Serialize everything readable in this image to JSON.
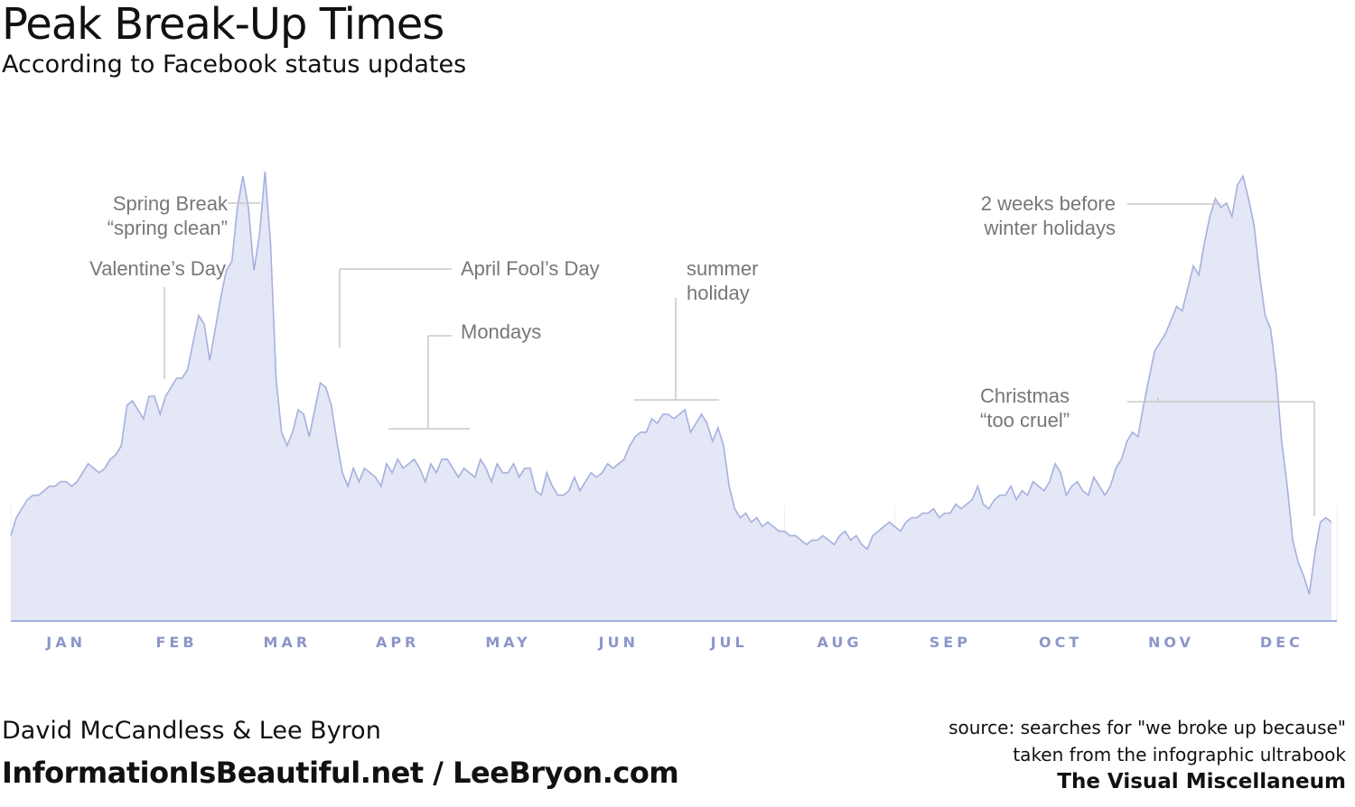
{
  "header": {
    "title": "Peak Break-Up Times",
    "subtitle": "According to Facebook status updates"
  },
  "footer": {
    "credit_names": "David McCandless & Lee Byron",
    "credit_sites": "InformationIsBeautiful.net / LeeBryon.com",
    "source_line": "source: searches for \"we broke up because\"",
    "taken_from": "taken from the infographic ultrabook",
    "book_title": "The Visual Miscellaneum"
  },
  "colors": {
    "area_fill": "#e3e7f6",
    "area_stroke": "#a7b0de",
    "gridline": "#eceef8",
    "annotation": "#777777",
    "month_label": "#8c96c8"
  },
  "chart_data": {
    "type": "area",
    "title": "Peak Break-Up Times",
    "subtitle": "According to Facebook status updates",
    "xlabel": "",
    "ylabel": "",
    "y_axis_shown": false,
    "y_units": "relative (0 = baseline, 100 = highest peak)",
    "ylim": [
      0,
      100
    ],
    "grid": "vertical month bands",
    "months": [
      "JAN",
      "FEB",
      "MAR",
      "APR",
      "MAY",
      "JUN",
      "JUL",
      "AUG",
      "SEP",
      "OCT",
      "NOV",
      "DEC"
    ],
    "x_domain": [
      0,
      12
    ],
    "x_units": "months since Jan 1",
    "points": [
      [
        0.0,
        19
      ],
      [
        0.05,
        23
      ],
      [
        0.1,
        25
      ],
      [
        0.15,
        27
      ],
      [
        0.2,
        28
      ],
      [
        0.25,
        28
      ],
      [
        0.3,
        29
      ],
      [
        0.35,
        30
      ],
      [
        0.4,
        30
      ],
      [
        0.45,
        31
      ],
      [
        0.5,
        31
      ],
      [
        0.55,
        30
      ],
      [
        0.6,
        31
      ],
      [
        0.65,
        33
      ],
      [
        0.7,
        35
      ],
      [
        0.75,
        34
      ],
      [
        0.8,
        33
      ],
      [
        0.85,
        34
      ],
      [
        0.9,
        36
      ],
      [
        0.95,
        37
      ],
      [
        1.0,
        39
      ],
      [
        1.05,
        48
      ],
      [
        1.1,
        49
      ],
      [
        1.15,
        47
      ],
      [
        1.2,
        45
      ],
      [
        1.25,
        50
      ],
      [
        1.3,
        50
      ],
      [
        1.35,
        46
      ],
      [
        1.4,
        50
      ],
      [
        1.45,
        52
      ],
      [
        1.5,
        54
      ],
      [
        1.55,
        54
      ],
      [
        1.6,
        56
      ],
      [
        1.65,
        62
      ],
      [
        1.7,
        68
      ],
      [
        1.75,
        66
      ],
      [
        1.8,
        58
      ],
      [
        1.85,
        65
      ],
      [
        1.9,
        72
      ],
      [
        1.95,
        78
      ],
      [
        2.0,
        80
      ],
      [
        2.05,
        92
      ],
      [
        2.1,
        99
      ],
      [
        2.15,
        92
      ],
      [
        2.2,
        78
      ],
      [
        2.25,
        86
      ],
      [
        2.3,
        100
      ],
      [
        2.35,
        84
      ],
      [
        2.4,
        54
      ],
      [
        2.45,
        42
      ],
      [
        2.5,
        39
      ],
      [
        2.55,
        42
      ],
      [
        2.6,
        47
      ],
      [
        2.65,
        46
      ],
      [
        2.7,
        41
      ],
      [
        2.75,
        47
      ],
      [
        2.8,
        53
      ],
      [
        2.85,
        52
      ],
      [
        2.9,
        48
      ],
      [
        2.95,
        40
      ],
      [
        3.0,
        33
      ],
      [
        3.05,
        30
      ],
      [
        3.1,
        34
      ],
      [
        3.15,
        31
      ],
      [
        3.2,
        34
      ],
      [
        3.25,
        33
      ],
      [
        3.3,
        32
      ],
      [
        3.35,
        30
      ],
      [
        3.4,
        35
      ],
      [
        3.45,
        33
      ],
      [
        3.5,
        36
      ],
      [
        3.55,
        34
      ],
      [
        3.6,
        35
      ],
      [
        3.65,
        36
      ],
      [
        3.7,
        34
      ],
      [
        3.75,
        31
      ],
      [
        3.8,
        35
      ],
      [
        3.85,
        33
      ],
      [
        3.9,
        36
      ],
      [
        3.95,
        36
      ],
      [
        4.0,
        34
      ],
      [
        4.05,
        32
      ],
      [
        4.1,
        34
      ],
      [
        4.15,
        33
      ],
      [
        4.2,
        32
      ],
      [
        4.25,
        36
      ],
      [
        4.3,
        34
      ],
      [
        4.35,
        31
      ],
      [
        4.4,
        35
      ],
      [
        4.45,
        33
      ],
      [
        4.5,
        33
      ],
      [
        4.55,
        35
      ],
      [
        4.6,
        32
      ],
      [
        4.65,
        34
      ],
      [
        4.7,
        34
      ],
      [
        4.75,
        29
      ],
      [
        4.8,
        28
      ],
      [
        4.85,
        33
      ],
      [
        4.9,
        30
      ],
      [
        4.95,
        28
      ],
      [
        5.0,
        28
      ],
      [
        5.05,
        29
      ],
      [
        5.1,
        32
      ],
      [
        5.15,
        29
      ],
      [
        5.2,
        31
      ],
      [
        5.25,
        33
      ],
      [
        5.3,
        32
      ],
      [
        5.35,
        33
      ],
      [
        5.4,
        35
      ],
      [
        5.45,
        34
      ],
      [
        5.5,
        35
      ],
      [
        5.55,
        36
      ],
      [
        5.6,
        39
      ],
      [
        5.65,
        41
      ],
      [
        5.7,
        42
      ],
      [
        5.75,
        42
      ],
      [
        5.8,
        45
      ],
      [
        5.85,
        44
      ],
      [
        5.9,
        46
      ],
      [
        5.95,
        46
      ],
      [
        6.0,
        45
      ],
      [
        6.05,
        46
      ],
      [
        6.1,
        47
      ],
      [
        6.15,
        42
      ],
      [
        6.2,
        44
      ],
      [
        6.25,
        46
      ],
      [
        6.3,
        44
      ],
      [
        6.35,
        40
      ],
      [
        6.4,
        43
      ],
      [
        6.45,
        39
      ],
      [
        6.5,
        30
      ],
      [
        6.55,
        25
      ],
      [
        6.6,
        23
      ],
      [
        6.65,
        24
      ],
      [
        6.7,
        22
      ],
      [
        6.75,
        23
      ],
      [
        6.8,
        21
      ],
      [
        6.85,
        22
      ],
      [
        6.9,
        21
      ],
      [
        6.95,
        20
      ],
      [
        7.0,
        20
      ],
      [
        7.05,
        19
      ],
      [
        7.1,
        19
      ],
      [
        7.15,
        18
      ],
      [
        7.2,
        17
      ],
      [
        7.25,
        18
      ],
      [
        7.3,
        18
      ],
      [
        7.35,
        19
      ],
      [
        7.4,
        18
      ],
      [
        7.45,
        17
      ],
      [
        7.5,
        19
      ],
      [
        7.55,
        20
      ],
      [
        7.6,
        18
      ],
      [
        7.65,
        19
      ],
      [
        7.7,
        17
      ],
      [
        7.75,
        16
      ],
      [
        7.8,
        19
      ],
      [
        7.85,
        20
      ],
      [
        7.9,
        21
      ],
      [
        7.95,
        22
      ],
      [
        8.0,
        21
      ],
      [
        8.05,
        20
      ],
      [
        8.1,
        22
      ],
      [
        8.15,
        23
      ],
      [
        8.2,
        23
      ],
      [
        8.25,
        24
      ],
      [
        8.3,
        24
      ],
      [
        8.35,
        25
      ],
      [
        8.4,
        23
      ],
      [
        8.45,
        24
      ],
      [
        8.5,
        24
      ],
      [
        8.55,
        26
      ],
      [
        8.6,
        25
      ],
      [
        8.65,
        26
      ],
      [
        8.7,
        27
      ],
      [
        8.75,
        30
      ],
      [
        8.8,
        26
      ],
      [
        8.85,
        25
      ],
      [
        8.9,
        27
      ],
      [
        8.95,
        28
      ],
      [
        9.0,
        28
      ],
      [
        9.05,
        30
      ],
      [
        9.1,
        27
      ],
      [
        9.15,
        29
      ],
      [
        9.2,
        28
      ],
      [
        9.25,
        31
      ],
      [
        9.3,
        30
      ],
      [
        9.35,
        29
      ],
      [
        9.4,
        31
      ],
      [
        9.45,
        35
      ],
      [
        9.5,
        33
      ],
      [
        9.55,
        28
      ],
      [
        9.6,
        30
      ],
      [
        9.65,
        31
      ],
      [
        9.7,
        29
      ],
      [
        9.75,
        28
      ],
      [
        9.8,
        32
      ],
      [
        9.85,
        30
      ],
      [
        9.9,
        28
      ],
      [
        9.95,
        30
      ],
      [
        10.0,
        34
      ],
      [
        10.05,
        36
      ],
      [
        10.1,
        40
      ],
      [
        10.15,
        42
      ],
      [
        10.2,
        41
      ],
      [
        10.25,
        48
      ],
      [
        10.3,
        54
      ],
      [
        10.35,
        60
      ],
      [
        10.4,
        62
      ],
      [
        10.45,
        64
      ],
      [
        10.5,
        67
      ],
      [
        10.55,
        70
      ],
      [
        10.6,
        69
      ],
      [
        10.65,
        74
      ],
      [
        10.7,
        79
      ],
      [
        10.75,
        77
      ],
      [
        10.8,
        84
      ],
      [
        10.85,
        90
      ],
      [
        10.9,
        94
      ],
      [
        10.95,
        92
      ],
      [
        11.0,
        93
      ],
      [
        11.05,
        90
      ],
      [
        11.1,
        97
      ],
      [
        11.15,
        99
      ],
      [
        11.2,
        94
      ],
      [
        11.25,
        88
      ],
      [
        11.3,
        77
      ],
      [
        11.35,
        68
      ],
      [
        11.4,
        65
      ],
      [
        11.45,
        55
      ],
      [
        11.5,
        40
      ],
      [
        11.55,
        30
      ],
      [
        11.6,
        18
      ],
      [
        11.65,
        13
      ],
      [
        11.7,
        10
      ],
      [
        11.75,
        6
      ],
      [
        11.8,
        15
      ],
      [
        11.85,
        22
      ],
      [
        11.9,
        23
      ],
      [
        11.95,
        22
      ]
    ],
    "annotations": [
      {
        "lines": [
          "Spring Break",
          "“spring clean”"
        ],
        "x": 2.3
      },
      {
        "lines": [
          "Valentine’s Day"
        ],
        "x": 1.45
      },
      {
        "lines": [
          "April Fool’s Day"
        ],
        "x": 3.0
      },
      {
        "lines": [
          "Mondays"
        ],
        "x_range": [
          3.45,
          4.15
        ]
      },
      {
        "lines": [
          "summer",
          "holiday"
        ],
        "x_range": [
          5.6,
          6.35
        ]
      },
      {
        "lines": [
          "2 weeks before",
          "winter holidays"
        ],
        "x": 11.0
      },
      {
        "lines": [
          "Christmas",
          "“too cruel”"
        ],
        "x_range": [
          10.35,
          11.75
        ]
      }
    ]
  }
}
